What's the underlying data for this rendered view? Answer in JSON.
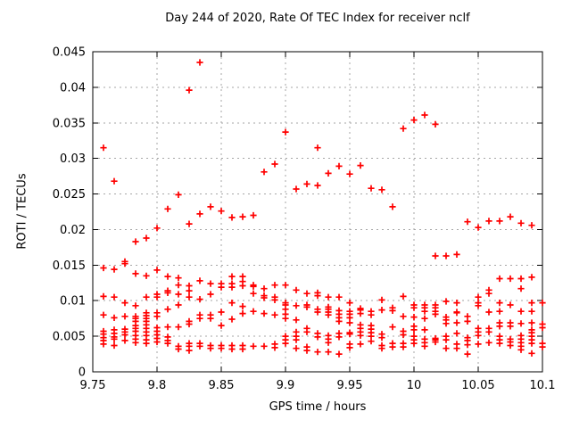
{
  "figure": {
    "title": "Day 244 of 2020, Rate Of TEC Index for receiver nclf",
    "x_axis_label": "GPS time / hours",
    "y_axis_label": "ROTI / TECUs"
  },
  "chart_data": {
    "type": "scatter",
    "title": "Day 244 of 2020, Rate Of TEC Index for receiver nclf",
    "xlabel": "GPS time / hours",
    "ylabel": "ROTI / TECUs",
    "xlim": [
      9.75,
      10.1
    ],
    "ylim": [
      0,
      0.045
    ],
    "xticks": {
      "values": [
        9.75,
        9.8,
        9.85,
        9.9,
        9.95,
        10,
        10.05,
        10.1
      ],
      "labels": [
        "9.75",
        "9.8",
        "9.85",
        "9.9",
        "9.95",
        "10",
        "10.05",
        "10.1"
      ]
    },
    "yticks": {
      "values": [
        0,
        0.005,
        0.01,
        0.015,
        0.02,
        0.025,
        0.03,
        0.035,
        0.04,
        0.045
      ],
      "labels": [
        "0",
        "0.005",
        "0.01",
        "0.015",
        "0.02",
        "0.025",
        "0.03",
        "0.035",
        "0.04",
        "0.045"
      ]
    },
    "grid": true,
    "legend": "none",
    "marker": {
      "shape": "plus",
      "color": "#ff0000"
    },
    "points_by_time": [
      {
        "t": 9.7583,
        "values": [
          0.0315,
          0.0146,
          0.0106,
          0.008,
          0.0057,
          0.0053,
          0.0048,
          0.0044,
          0.0039
        ]
      },
      {
        "t": 9.7667,
        "values": [
          0.0268,
          0.0144,
          0.0105,
          0.0076,
          0.0059,
          0.0054,
          0.0049,
          0.0046,
          0.0037
        ]
      },
      {
        "t": 9.775,
        "values": [
          0.0155,
          0.0152,
          0.0097,
          0.0078,
          0.006,
          0.0056,
          0.0052,
          0.0044
        ]
      },
      {
        "t": 9.7833,
        "values": [
          0.0183,
          0.0138,
          0.0093,
          0.0078,
          0.0075,
          0.0071,
          0.0065,
          0.0061,
          0.0057,
          0.0051,
          0.0046,
          0.0041
        ]
      },
      {
        "t": 9.7917,
        "values": [
          0.0188,
          0.0135,
          0.0105,
          0.0083,
          0.0079,
          0.0075,
          0.0071,
          0.0066,
          0.0061,
          0.0056,
          0.0051,
          0.0045,
          0.004
        ]
      },
      {
        "t": 9.8,
        "values": [
          0.0202,
          0.0143,
          0.0109,
          0.0105,
          0.0083,
          0.0078,
          0.0062,
          0.0057,
          0.0052,
          0.0047,
          0.0042
        ]
      },
      {
        "t": 9.8083,
        "values": [
          0.0229,
          0.0134,
          0.0114,
          0.0111,
          0.0088,
          0.0063,
          0.0049,
          0.0044,
          0.004
        ]
      },
      {
        "t": 9.8167,
        "values": [
          0.0249,
          0.0132,
          0.0122,
          0.0109,
          0.0094,
          0.0063,
          0.0036,
          0.0032
        ]
      },
      {
        "t": 9.825,
        "values": [
          0.0396,
          0.0208,
          0.0121,
          0.0114,
          0.0105,
          0.0071,
          0.0067,
          0.004,
          0.0036,
          0.003
        ]
      },
      {
        "t": 9.8333,
        "values": [
          0.0435,
          0.0222,
          0.0128,
          0.0102,
          0.008,
          0.0075,
          0.004,
          0.0036
        ]
      },
      {
        "t": 9.8417,
        "values": [
          0.0232,
          0.0124,
          0.0109,
          0.008,
          0.0075,
          0.0037,
          0.0033
        ]
      },
      {
        "t": 9.85,
        "values": [
          0.0226,
          0.0124,
          0.0119,
          0.0084,
          0.0065,
          0.0037,
          0.0033
        ]
      },
      {
        "t": 9.8583,
        "values": [
          0.0217,
          0.0134,
          0.0124,
          0.0119,
          0.0097,
          0.0074,
          0.0037,
          0.0032
        ]
      },
      {
        "t": 9.8667,
        "values": [
          0.0218,
          0.0134,
          0.0127,
          0.0121,
          0.0092,
          0.0082,
          0.0037,
          0.0032
        ]
      },
      {
        "t": 9.875,
        "values": [
          0.022,
          0.0122,
          0.012,
          0.011,
          0.0085,
          0.0036
        ]
      },
      {
        "t": 9.8833,
        "values": [
          0.0281,
          0.0117,
          0.0107,
          0.0104,
          0.0082,
          0.0036
        ]
      },
      {
        "t": 9.8917,
        "values": [
          0.0292,
          0.0122,
          0.0105,
          0.0101,
          0.008,
          0.0039,
          0.0034
        ]
      },
      {
        "t": 9.9,
        "values": [
          0.0337,
          0.0122,
          0.0097,
          0.0094,
          0.0088,
          0.0081,
          0.0075,
          0.005,
          0.0045,
          0.004
        ]
      },
      {
        "t": 9.9083,
        "values": [
          0.0257,
          0.0115,
          0.0093,
          0.0073,
          0.0056,
          0.005,
          0.0045,
          0.0033
        ]
      },
      {
        "t": 9.9167,
        "values": [
          0.0264,
          0.011,
          0.0094,
          0.0091,
          0.0061,
          0.0056,
          0.0035,
          0.003
        ]
      },
      {
        "t": 9.925,
        "values": [
          0.0315,
          0.0262,
          0.0111,
          0.0107,
          0.0088,
          0.0084,
          0.0054,
          0.0049,
          0.0028
        ]
      },
      {
        "t": 9.9333,
        "values": [
          0.0279,
          0.0105,
          0.0091,
          0.0088,
          0.0084,
          0.008,
          0.0051,
          0.0046,
          0.0041,
          0.0028
        ]
      },
      {
        "t": 9.9417,
        "values": [
          0.0289,
          0.0105,
          0.0086,
          0.0081,
          0.0076,
          0.0071,
          0.0054,
          0.0049,
          0.0025
        ]
      },
      {
        "t": 9.95,
        "values": [
          0.0278,
          0.0097,
          0.0085,
          0.0081,
          0.0076,
          0.0069,
          0.0055,
          0.0053,
          0.0039,
          0.0034
        ]
      },
      {
        "t": 9.9583,
        "values": [
          0.029,
          0.0089,
          0.0087,
          0.0082,
          0.0066,
          0.0061,
          0.0056,
          0.0051,
          0.0039
        ]
      },
      {
        "t": 9.9667,
        "values": [
          0.0258,
          0.0085,
          0.008,
          0.0065,
          0.006,
          0.0055,
          0.005,
          0.0043
        ]
      },
      {
        "t": 9.975,
        "values": [
          0.0256,
          0.0101,
          0.0087,
          0.0053,
          0.0048,
          0.0037,
          0.0033
        ]
      },
      {
        "t": 9.9833,
        "values": [
          0.0232,
          0.009,
          0.0086,
          0.0063,
          0.004,
          0.0035
        ]
      },
      {
        "t": 9.9917,
        "values": [
          0.0342,
          0.0106,
          0.0078,
          0.0057,
          0.0052,
          0.004,
          0.0035
        ]
      },
      {
        "t": 10.0,
        "values": [
          0.0354,
          0.0094,
          0.009,
          0.0077,
          0.0064,
          0.0059,
          0.005,
          0.0045,
          0.004
        ]
      },
      {
        "t": 10.0083,
        "values": [
          0.0361,
          0.0094,
          0.009,
          0.0085,
          0.0075,
          0.0059,
          0.0046,
          0.0041,
          0.0036
        ]
      },
      {
        "t": 10.0167,
        "values": [
          0.0348,
          0.0163,
          0.0094,
          0.009,
          0.0085,
          0.0081,
          0.0047,
          0.0045,
          0.0042
        ]
      },
      {
        "t": 10.025,
        "values": [
          0.0163,
          0.0099,
          0.0077,
          0.0073,
          0.0068,
          0.005,
          0.0045,
          0.0033
        ]
      },
      {
        "t": 10.0333,
        "values": [
          0.0165,
          0.0097,
          0.0084,
          0.0083,
          0.0069,
          0.0054,
          0.0039,
          0.0033
        ]
      },
      {
        "t": 10.0417,
        "values": [
          0.0211,
          0.0078,
          0.0071,
          0.0048,
          0.0044,
          0.0038,
          0.0025
        ]
      },
      {
        "t": 10.05,
        "values": [
          0.0203,
          0.0105,
          0.0097,
          0.0093,
          0.0061,
          0.0056,
          0.0051,
          0.0039
        ]
      },
      {
        "t": 10.0583,
        "values": [
          0.0212,
          0.0115,
          0.011,
          0.0084,
          0.0061,
          0.0056,
          0.0041
        ]
      },
      {
        "t": 10.0667,
        "values": [
          0.0212,
          0.0131,
          0.0097,
          0.0085,
          0.0069,
          0.0064,
          0.005,
          0.0045,
          0.004
        ]
      },
      {
        "t": 10.075,
        "values": [
          0.0218,
          0.0131,
          0.0094,
          0.0069,
          0.0064,
          0.0046,
          0.0042,
          0.0037
        ]
      },
      {
        "t": 10.0833,
        "values": [
          0.0209,
          0.0131,
          0.0117,
          0.0085,
          0.0068,
          0.0051,
          0.0046,
          0.0041,
          0.0036,
          0.0031
        ]
      },
      {
        "t": 10.0917,
        "values": [
          0.0206,
          0.0133,
          0.0097,
          0.0085,
          0.0069,
          0.0059,
          0.0055,
          0.005,
          0.0045,
          0.004,
          0.0026
        ]
      },
      {
        "t": 10.1,
        "values": [
          0.0097,
          0.0067,
          0.0062,
          0.004,
          0.0035
        ]
      }
    ]
  }
}
